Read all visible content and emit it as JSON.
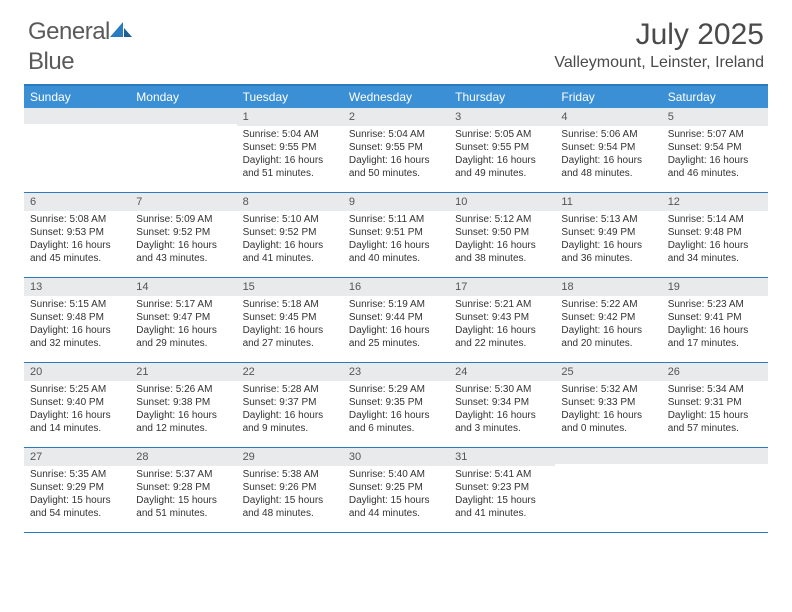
{
  "brand": {
    "text1": "General",
    "text2": "Blue"
  },
  "title": "July 2025",
  "location": "Valleymount, Leinster, Ireland",
  "colors": {
    "header_bg": "#3b8fd4",
    "header_text": "#ffffff",
    "rule": "#2b7bbf",
    "daynum_bg": "#e9eaeb",
    "body_text": "#333333",
    "brand_gray": "#5a5a5a",
    "brand_blue": "#2b7bbf"
  },
  "day_names": [
    "Sunday",
    "Monday",
    "Tuesday",
    "Wednesday",
    "Thursday",
    "Friday",
    "Saturday"
  ],
  "weeks": [
    [
      {
        "n": "",
        "sr": "",
        "ss": "",
        "dl": ""
      },
      {
        "n": "",
        "sr": "",
        "ss": "",
        "dl": ""
      },
      {
        "n": "1",
        "sr": "Sunrise: 5:04 AM",
        "ss": "Sunset: 9:55 PM",
        "dl": "Daylight: 16 hours and 51 minutes."
      },
      {
        "n": "2",
        "sr": "Sunrise: 5:04 AM",
        "ss": "Sunset: 9:55 PM",
        "dl": "Daylight: 16 hours and 50 minutes."
      },
      {
        "n": "3",
        "sr": "Sunrise: 5:05 AM",
        "ss": "Sunset: 9:55 PM",
        "dl": "Daylight: 16 hours and 49 minutes."
      },
      {
        "n": "4",
        "sr": "Sunrise: 5:06 AM",
        "ss": "Sunset: 9:54 PM",
        "dl": "Daylight: 16 hours and 48 minutes."
      },
      {
        "n": "5",
        "sr": "Sunrise: 5:07 AM",
        "ss": "Sunset: 9:54 PM",
        "dl": "Daylight: 16 hours and 46 minutes."
      }
    ],
    [
      {
        "n": "6",
        "sr": "Sunrise: 5:08 AM",
        "ss": "Sunset: 9:53 PM",
        "dl": "Daylight: 16 hours and 45 minutes."
      },
      {
        "n": "7",
        "sr": "Sunrise: 5:09 AM",
        "ss": "Sunset: 9:52 PM",
        "dl": "Daylight: 16 hours and 43 minutes."
      },
      {
        "n": "8",
        "sr": "Sunrise: 5:10 AM",
        "ss": "Sunset: 9:52 PM",
        "dl": "Daylight: 16 hours and 41 minutes."
      },
      {
        "n": "9",
        "sr": "Sunrise: 5:11 AM",
        "ss": "Sunset: 9:51 PM",
        "dl": "Daylight: 16 hours and 40 minutes."
      },
      {
        "n": "10",
        "sr": "Sunrise: 5:12 AM",
        "ss": "Sunset: 9:50 PM",
        "dl": "Daylight: 16 hours and 38 minutes."
      },
      {
        "n": "11",
        "sr": "Sunrise: 5:13 AM",
        "ss": "Sunset: 9:49 PM",
        "dl": "Daylight: 16 hours and 36 minutes."
      },
      {
        "n": "12",
        "sr": "Sunrise: 5:14 AM",
        "ss": "Sunset: 9:48 PM",
        "dl": "Daylight: 16 hours and 34 minutes."
      }
    ],
    [
      {
        "n": "13",
        "sr": "Sunrise: 5:15 AM",
        "ss": "Sunset: 9:48 PM",
        "dl": "Daylight: 16 hours and 32 minutes."
      },
      {
        "n": "14",
        "sr": "Sunrise: 5:17 AM",
        "ss": "Sunset: 9:47 PM",
        "dl": "Daylight: 16 hours and 29 minutes."
      },
      {
        "n": "15",
        "sr": "Sunrise: 5:18 AM",
        "ss": "Sunset: 9:45 PM",
        "dl": "Daylight: 16 hours and 27 minutes."
      },
      {
        "n": "16",
        "sr": "Sunrise: 5:19 AM",
        "ss": "Sunset: 9:44 PM",
        "dl": "Daylight: 16 hours and 25 minutes."
      },
      {
        "n": "17",
        "sr": "Sunrise: 5:21 AM",
        "ss": "Sunset: 9:43 PM",
        "dl": "Daylight: 16 hours and 22 minutes."
      },
      {
        "n": "18",
        "sr": "Sunrise: 5:22 AM",
        "ss": "Sunset: 9:42 PM",
        "dl": "Daylight: 16 hours and 20 minutes."
      },
      {
        "n": "19",
        "sr": "Sunrise: 5:23 AM",
        "ss": "Sunset: 9:41 PM",
        "dl": "Daylight: 16 hours and 17 minutes."
      }
    ],
    [
      {
        "n": "20",
        "sr": "Sunrise: 5:25 AM",
        "ss": "Sunset: 9:40 PM",
        "dl": "Daylight: 16 hours and 14 minutes."
      },
      {
        "n": "21",
        "sr": "Sunrise: 5:26 AM",
        "ss": "Sunset: 9:38 PM",
        "dl": "Daylight: 16 hours and 12 minutes."
      },
      {
        "n": "22",
        "sr": "Sunrise: 5:28 AM",
        "ss": "Sunset: 9:37 PM",
        "dl": "Daylight: 16 hours and 9 minutes."
      },
      {
        "n": "23",
        "sr": "Sunrise: 5:29 AM",
        "ss": "Sunset: 9:35 PM",
        "dl": "Daylight: 16 hours and 6 minutes."
      },
      {
        "n": "24",
        "sr": "Sunrise: 5:30 AM",
        "ss": "Sunset: 9:34 PM",
        "dl": "Daylight: 16 hours and 3 minutes."
      },
      {
        "n": "25",
        "sr": "Sunrise: 5:32 AM",
        "ss": "Sunset: 9:33 PM",
        "dl": "Daylight: 16 hours and 0 minutes."
      },
      {
        "n": "26",
        "sr": "Sunrise: 5:34 AM",
        "ss": "Sunset: 9:31 PM",
        "dl": "Daylight: 15 hours and 57 minutes."
      }
    ],
    [
      {
        "n": "27",
        "sr": "Sunrise: 5:35 AM",
        "ss": "Sunset: 9:29 PM",
        "dl": "Daylight: 15 hours and 54 minutes."
      },
      {
        "n": "28",
        "sr": "Sunrise: 5:37 AM",
        "ss": "Sunset: 9:28 PM",
        "dl": "Daylight: 15 hours and 51 minutes."
      },
      {
        "n": "29",
        "sr": "Sunrise: 5:38 AM",
        "ss": "Sunset: 9:26 PM",
        "dl": "Daylight: 15 hours and 48 minutes."
      },
      {
        "n": "30",
        "sr": "Sunrise: 5:40 AM",
        "ss": "Sunset: 9:25 PM",
        "dl": "Daylight: 15 hours and 44 minutes."
      },
      {
        "n": "31",
        "sr": "Sunrise: 5:41 AM",
        "ss": "Sunset: 9:23 PM",
        "dl": "Daylight: 15 hours and 41 minutes."
      },
      {
        "n": "",
        "sr": "",
        "ss": "",
        "dl": ""
      },
      {
        "n": "",
        "sr": "",
        "ss": "",
        "dl": ""
      }
    ]
  ]
}
